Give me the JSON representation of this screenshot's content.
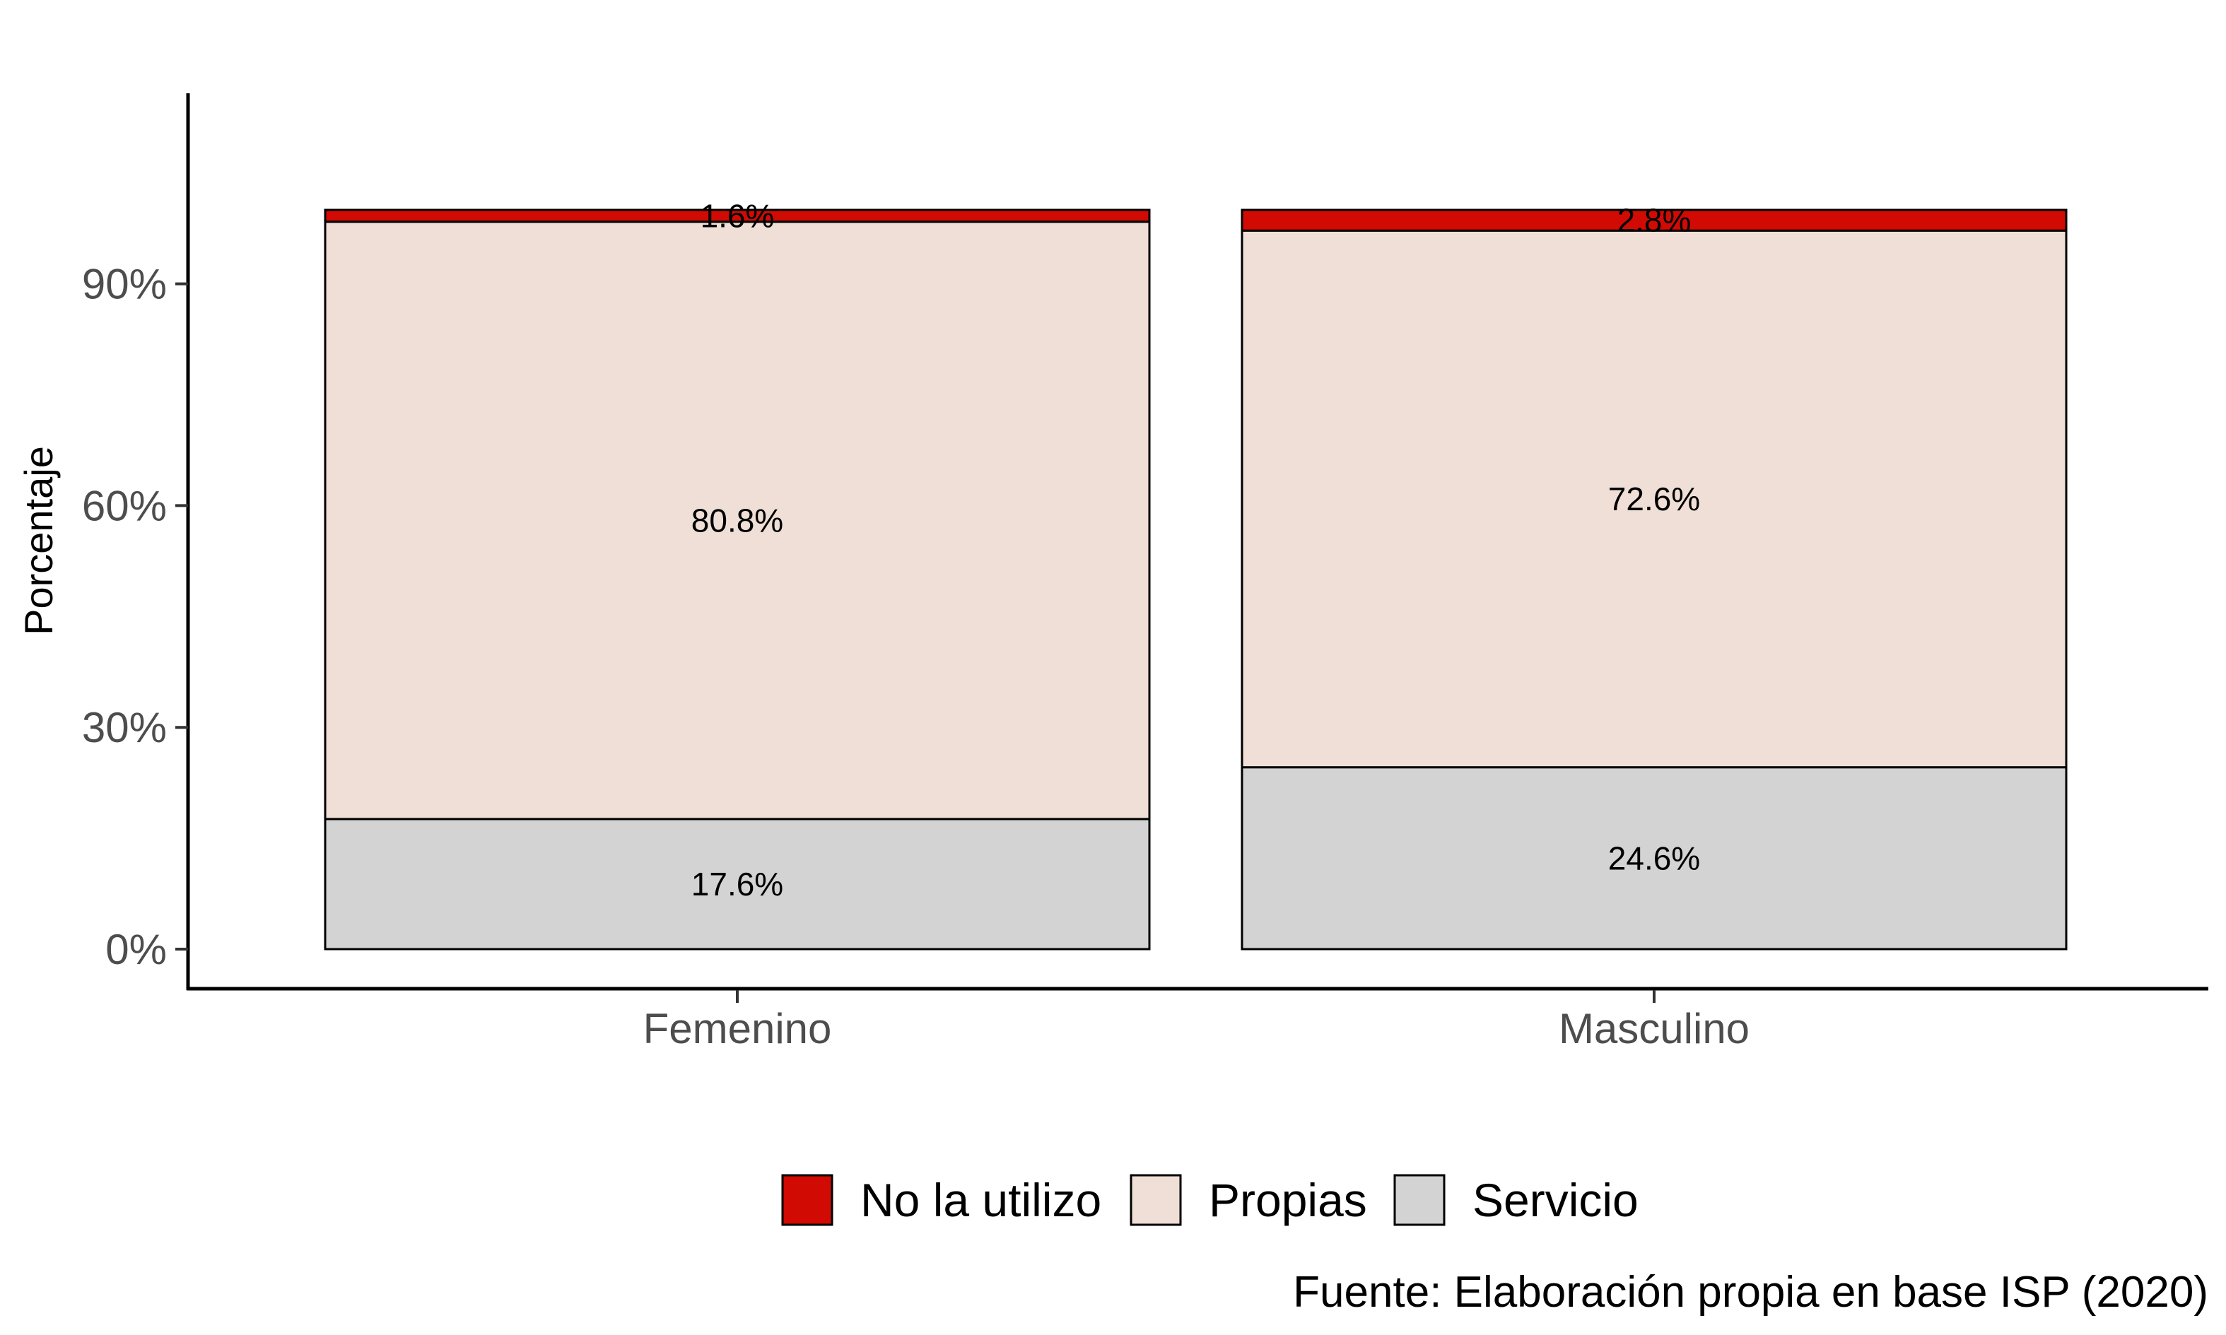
{
  "chart_data": {
    "type": "bar",
    "stacked": true,
    "percent_axis": true,
    "categories": [
      "Femenino",
      "Masculino"
    ],
    "series": [
      {
        "name": "Servicio",
        "color": "#d3d3d3",
        "values": [
          17.6,
          24.6
        ],
        "labels": [
          "17.6%",
          "24.6%"
        ]
      },
      {
        "name": "Propias",
        "color": "#efdfd6",
        "values": [
          80.8,
          72.6
        ],
        "labels": [
          "80.8%",
          "72.6%"
        ]
      },
      {
        "name": "No la utilizo",
        "color": "#d10a04",
        "values": [
          1.6,
          2.8
        ],
        "labels": [
          "1.6%",
          "2.8%"
        ]
      }
    ],
    "legend_order": [
      "No la utilizo",
      "Propias",
      "Servicio"
    ],
    "legend_position": "bottom",
    "ylabel": "Porcentaje",
    "xlabel": "",
    "ylim": [
      0,
      115
    ],
    "yticks": [
      0,
      30,
      60,
      90
    ],
    "ytick_labels": [
      "0%",
      "30%",
      "60%",
      "90%"
    ],
    "grid": false,
    "caption": "Fuente: Elaboración propia en base ISP (2020)"
  }
}
